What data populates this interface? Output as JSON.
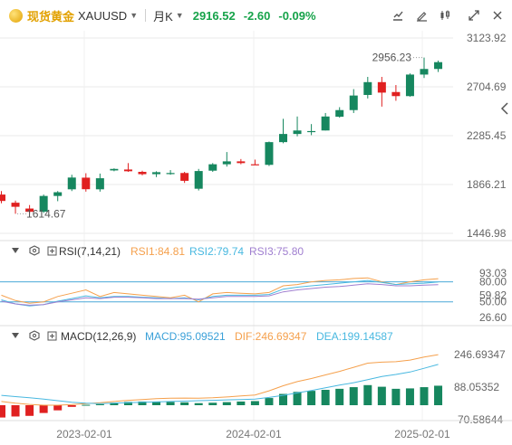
{
  "header": {
    "symbol_name": "现货黄金",
    "symbol_code": "XAUUSD",
    "timeframe": "月K",
    "last_price": "2916.52",
    "change": "-2.60",
    "change_pct": "-0.09%"
  },
  "colors": {
    "up": "#16875f",
    "down": "#e02020",
    "grid": "#e9e9e9",
    "rsi1": "#f5a04c",
    "rsi2": "#48b8e0",
    "rsi3": "#a07fd0",
    "macd": "#3aa0d8",
    "dif": "#f5a04c",
    "dea": "#48b8e0",
    "hline": "#4aa8d8"
  },
  "chart_data": [
    {
      "type": "candlestick",
      "title": "",
      "ylim": [
        1446.98,
        3123.92
      ],
      "y_ticks": [
        "3123.92",
        "2704.69",
        "2285.45",
        "1866.21",
        "1446.98"
      ],
      "x_ticks": [
        "2023-02-01",
        "2024-02-01",
        "2025-02-01"
      ],
      "annotations": {
        "high": "2956.23",
        "low": "1614.67"
      },
      "candles": [
        {
          "o": 1780,
          "h": 1810,
          "l": 1705,
          "c": 1725
        },
        {
          "o": 1710,
          "h": 1728,
          "l": 1615,
          "c": 1675
        },
        {
          "o": 1660,
          "h": 1690,
          "l": 1616,
          "c": 1632
        },
        {
          "o": 1633,
          "h": 1780,
          "l": 1622,
          "c": 1768
        },
        {
          "o": 1768,
          "h": 1810,
          "l": 1723,
          "c": 1800
        },
        {
          "o": 1825,
          "h": 1950,
          "l": 1810,
          "c": 1926
        },
        {
          "o": 1925,
          "h": 1963,
          "l": 1805,
          "c": 1826
        },
        {
          "o": 1825,
          "h": 1960,
          "l": 1805,
          "c": 1920
        },
        {
          "o": 1987,
          "h": 2005,
          "l": 1980,
          "c": 2000
        },
        {
          "o": 1995,
          "h": 2050,
          "l": 1975,
          "c": 1980
        },
        {
          "o": 1975,
          "h": 1985,
          "l": 1945,
          "c": 1955
        },
        {
          "o": 1955,
          "h": 1980,
          "l": 1930,
          "c": 1972
        },
        {
          "o": 1960,
          "h": 1990,
          "l": 1950,
          "c": 1965
        },
        {
          "o": 1965,
          "h": 1975,
          "l": 1880,
          "c": 1898
        },
        {
          "o": 1830,
          "h": 2000,
          "l": 1815,
          "c": 1982
        },
        {
          "o": 1985,
          "h": 2050,
          "l": 1975,
          "c": 2040
        },
        {
          "o": 2040,
          "h": 2145,
          "l": 2020,
          "c": 2065
        },
        {
          "o": 2065,
          "h": 2085,
          "l": 2040,
          "c": 2050
        },
        {
          "o": 2040,
          "h": 2080,
          "l": 2035,
          "c": 2035
        },
        {
          "o": 2035,
          "h": 2235,
          "l": 2025,
          "c": 2230
        },
        {
          "o": 2230,
          "h": 2430,
          "l": 2220,
          "c": 2300
        },
        {
          "o": 2300,
          "h": 2450,
          "l": 2280,
          "c": 2330
        },
        {
          "o": 2325,
          "h": 2385,
          "l": 2290,
          "c": 2325
        },
        {
          "o": 2330,
          "h": 2480,
          "l": 2330,
          "c": 2450
        },
        {
          "o": 2448,
          "h": 2530,
          "l": 2440,
          "c": 2505
        },
        {
          "o": 2505,
          "h": 2685,
          "l": 2480,
          "c": 2630
        },
        {
          "o": 2635,
          "h": 2790,
          "l": 2605,
          "c": 2745
        },
        {
          "o": 2745,
          "h": 2790,
          "l": 2535,
          "c": 2655
        },
        {
          "o": 2660,
          "h": 2720,
          "l": 2585,
          "c": 2625
        },
        {
          "o": 2625,
          "h": 2820,
          "l": 2620,
          "c": 2810
        },
        {
          "o": 2810,
          "h": 2956.23,
          "l": 2780,
          "c": 2858
        },
        {
          "o": 2858,
          "h": 2930,
          "l": 2832,
          "c": 2916.52
        }
      ]
    },
    {
      "type": "line",
      "title": "",
      "indicator_label": "RSI(7,14,21)",
      "legend": [
        "RSI1:84.81",
        "RSI2:79.74",
        "RSI3:75.80"
      ],
      "ylim": [
        26.6,
        93.03
      ],
      "y_ticks": [
        "93.03",
        "80.00",
        "59.82",
        "50.00",
        "26.60"
      ],
      "hlines": [
        80,
        50
      ],
      "series": [
        {
          "name": "RSI1",
          "values": [
            60,
            52,
            48,
            50,
            58,
            63,
            68,
            58,
            64,
            62,
            60,
            58,
            56,
            60,
            50,
            62,
            64,
            63,
            62,
            64,
            74,
            76,
            80,
            82,
            83,
            85,
            86,
            80,
            76,
            80,
            83,
            84.81
          ]
        },
        {
          "name": "RSI2",
          "values": [
            53,
            47,
            44,
            46,
            51,
            55,
            59,
            56,
            58,
            58,
            57,
            56,
            55,
            56,
            53,
            58,
            60,
            60,
            60,
            61,
            69,
            72,
            74,
            76,
            78,
            80,
            82,
            79,
            76,
            77,
            78,
            79.74
          ]
        },
        {
          "name": "RSI3",
          "values": [
            51,
            47,
            45,
            46,
            50,
            53,
            56,
            55,
            57,
            57,
            56,
            55,
            55,
            55,
            54,
            56,
            58,
            58,
            58,
            59,
            65,
            68,
            70,
            72,
            73,
            75,
            77,
            76,
            74,
            74,
            75,
            75.8
          ]
        }
      ]
    },
    {
      "type": "bar",
      "title": "",
      "indicator_label": "MACD(12,26,9)",
      "legend": [
        "MACD:95.09521",
        "DIF:246.69347",
        "DEA:199.14587"
      ],
      "ylim": [
        -70.58644,
        300
      ],
      "y_ticks": [
        "246.69347",
        "88.05352",
        "-70.58644"
      ],
      "series": [
        {
          "name": "MACD",
          "values": [
            -60,
            -55,
            -52,
            -38,
            -25,
            -8,
            2,
            5,
            12,
            16,
            18,
            18,
            16,
            14,
            10,
            12,
            15,
            18,
            20,
            35,
            55,
            65,
            70,
            75,
            80,
            88,
            98,
            90,
            80,
            82,
            88,
            95.09521
          ]
        },
        {
          "name": "DIF",
          "values": [
            18,
            10,
            4,
            0,
            0,
            3,
            8,
            12,
            18,
            24,
            28,
            32,
            34,
            35,
            34,
            36,
            40,
            45,
            50,
            70,
            95,
            115,
            130,
            148,
            165,
            185,
            205,
            210,
            212,
            220,
            235,
            246.69347
          ]
        },
        {
          "name": "DEA",
          "values": [
            48,
            42,
            36,
            30,
            22,
            14,
            10,
            8,
            10,
            12,
            14,
            16,
            18,
            20,
            22,
            24,
            26,
            28,
            30,
            38,
            48,
            60,
            72,
            85,
            98,
            110,
            125,
            140,
            150,
            162,
            180,
            199.14587
          ]
        }
      ]
    }
  ]
}
